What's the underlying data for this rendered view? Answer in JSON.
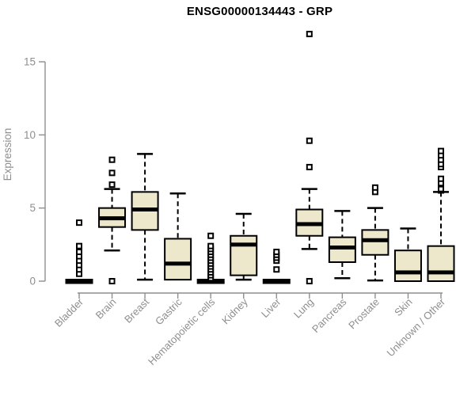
{
  "colors": {
    "box_fill": "#EDE7CB",
    "box_border": "#000000",
    "median_color": "#000000",
    "whisker_color": "#000000",
    "axis_color": "#8E8E8E",
    "tick_text_color": "#8E8E8E",
    "title_color": "#000000",
    "background": "#FFFFFF"
  },
  "chart_data": {
    "type": "boxplot",
    "title": "ENSG00000134443 - GRP",
    "xlabel": "",
    "ylabel": "Expression",
    "ylim": [
      0,
      15
    ],
    "yticks": [
      0,
      5,
      10,
      15
    ],
    "grid": false,
    "legend": null,
    "categories": [
      "Bladder",
      "Brain",
      "Breast",
      "Gastric",
      "Hematopoietic cells",
      "Kidney",
      "Liver",
      "Lung",
      "Pancreas",
      "Prostate",
      "Skin",
      "Unknown / Other"
    ],
    "boxes": [
      {
        "category": "Bladder",
        "whisker_low": 0,
        "q1": 0,
        "median": 0,
        "q3": 0,
        "whisker_high": 0,
        "outliers": [
          0.5,
          0.8,
          1.1,
          1.4,
          1.7,
          2.0,
          2.4,
          4.0
        ]
      },
      {
        "category": "Brain",
        "whisker_low": 2.1,
        "q1": 3.7,
        "median": 4.3,
        "q3": 5.0,
        "whisker_high": 6.3,
        "outliers": [
          0,
          6.6,
          7.4,
          8.3
        ]
      },
      {
        "category": "Breast",
        "whisker_low": 0.1,
        "q1": 3.5,
        "median": 4.9,
        "q3": 6.1,
        "whisker_high": 8.7,
        "outliers": []
      },
      {
        "category": "Gastric",
        "whisker_low": 0.1,
        "q1": 0.1,
        "median": 1.2,
        "q3": 2.9,
        "whisker_high": 6.0,
        "outliers": []
      },
      {
        "category": "Hematopoietic cells",
        "whisker_low": 0,
        "q1": 0,
        "median": 0,
        "q3": 0,
        "whisker_high": 0,
        "outliers": [
          0.2,
          0.4,
          0.6,
          0.8,
          1.0,
          1.2,
          1.4,
          1.6,
          1.8,
          2.0,
          2.2,
          2.4,
          3.1
        ]
      },
      {
        "category": "Kidney",
        "whisker_low": 0.1,
        "q1": 0.4,
        "median": 2.5,
        "q3": 3.1,
        "whisker_high": 4.6,
        "outliers": []
      },
      {
        "category": "Liver",
        "whisker_low": 0,
        "q1": 0,
        "median": 0,
        "q3": 0,
        "whisker_high": 0,
        "outliers": [
          0.8,
          1.4,
          1.6,
          1.8,
          2.0
        ]
      },
      {
        "category": "Lung",
        "whisker_low": 2.2,
        "q1": 3.1,
        "median": 3.9,
        "q3": 4.9,
        "whisker_high": 6.3,
        "outliers": [
          0,
          7.8,
          9.6,
          16.9
        ]
      },
      {
        "category": "Pancreas",
        "whisker_low": 0.2,
        "q1": 1.3,
        "median": 2.3,
        "q3": 3.0,
        "whisker_high": 4.8,
        "outliers": []
      },
      {
        "category": "Prostate",
        "whisker_low": 0.05,
        "q1": 1.8,
        "median": 2.8,
        "q3": 3.5,
        "whisker_high": 5.0,
        "outliers": [
          6.1,
          6.4
        ]
      },
      {
        "category": "Skin",
        "whisker_low": 0,
        "q1": 0,
        "median": 0.6,
        "q3": 2.1,
        "whisker_high": 3.6,
        "outliers": []
      },
      {
        "category": "Unknown / Other",
        "whisker_low": 0,
        "q1": 0,
        "median": 0.6,
        "q3": 2.4,
        "whisker_high": 6.1,
        "outliers": [
          6.2,
          6.3,
          6.7,
          7.0,
          7.8,
          8.0,
          8.3,
          8.6,
          8.9
        ]
      }
    ]
  }
}
